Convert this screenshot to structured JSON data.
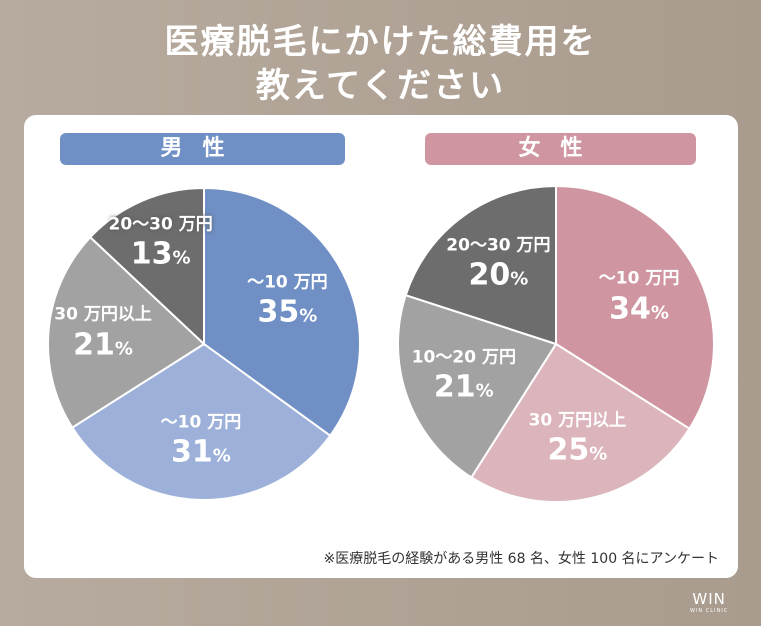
{
  "title_line1": "医療脱毛にかけた総費用を",
  "title_line2": "教えてください",
  "note": "※医療脱毛の経験がある男性 68 名、女性 100 名にアンケート",
  "logo": {
    "main": "WIN",
    "sub": "WIN CLINIC"
  },
  "chart_data": [
    {
      "type": "pie",
      "title": "男性",
      "categories": [
        "〜10 万円",
        "〜10 万円",
        "30 万円以上",
        "20〜30 万円"
      ],
      "values": [
        35,
        31,
        21,
        13
      ],
      "colors": [
        "#7090c5",
        "#9cb0d9",
        "#a1a2a1",
        "#6d6d6d"
      ]
    },
    {
      "type": "pie",
      "title": "女性",
      "categories": [
        "〜10 万円",
        "30 万円以上",
        "10〜20 万円",
        "20〜30 万円"
      ],
      "values": [
        34,
        25,
        21,
        20
      ],
      "colors": [
        "#cf96a1",
        "#dcb4bb",
        "#a1a2a1",
        "#6d6d6d"
      ]
    }
  ]
}
